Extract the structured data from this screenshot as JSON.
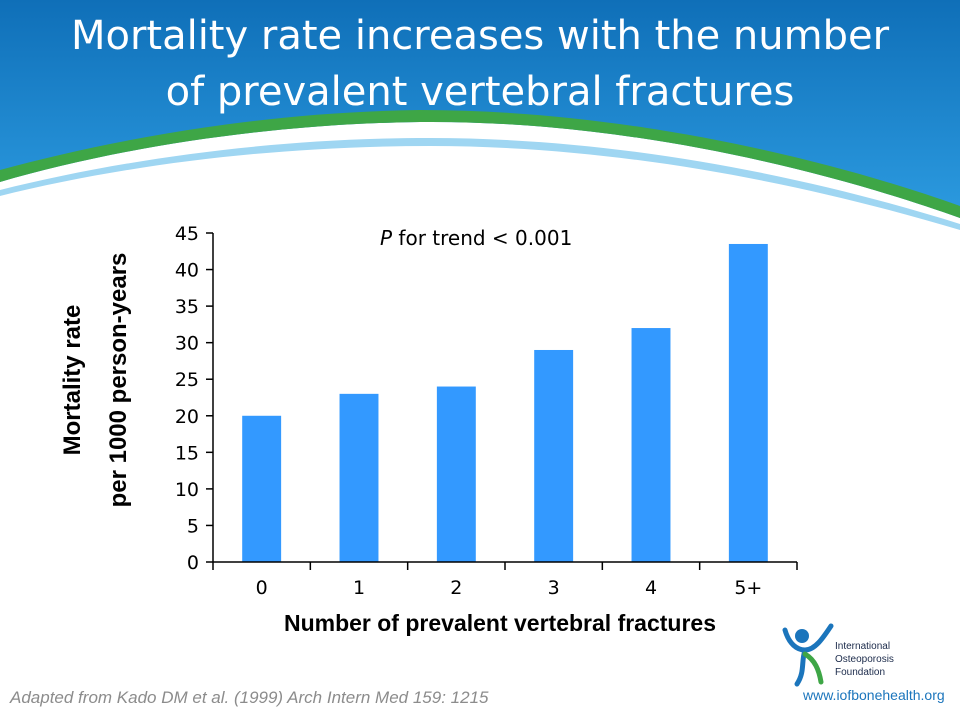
{
  "slide": {
    "title_lines": [
      "Mortality rate increases with the number",
      "of prevalent vertebral fractures"
    ],
    "source": "Adapted from Kado DM et al. (1999)  Arch Intern Med 159:  1215",
    "logo": {
      "lines": [
        "International",
        "Osteoporosis",
        "Foundation"
      ],
      "url": "www.iofbonehealth.org"
    },
    "colors": {
      "header_blue": "#1a82c8",
      "header_green": "#3ea646",
      "bar": "#3399ff"
    }
  },
  "chart_data": {
    "type": "bar",
    "categories": [
      "0",
      "1",
      "2",
      "3",
      "4",
      "5+"
    ],
    "values": [
      20,
      23,
      24,
      29,
      32,
      43.5
    ],
    "title": "",
    "xlabel": "Number of prevalent vertebral fractures",
    "ylabel_lines": [
      "Mortality rate",
      "per 1000 person-years"
    ],
    "ylim": [
      0,
      45
    ],
    "yticks": [
      "0",
      "5",
      "10",
      "15",
      "20",
      "25",
      "30",
      "35",
      "40",
      "45"
    ],
    "annotation": {
      "italic": "P",
      "rest": " for trend < 0.001"
    },
    "grid": false,
    "legend": "none"
  }
}
